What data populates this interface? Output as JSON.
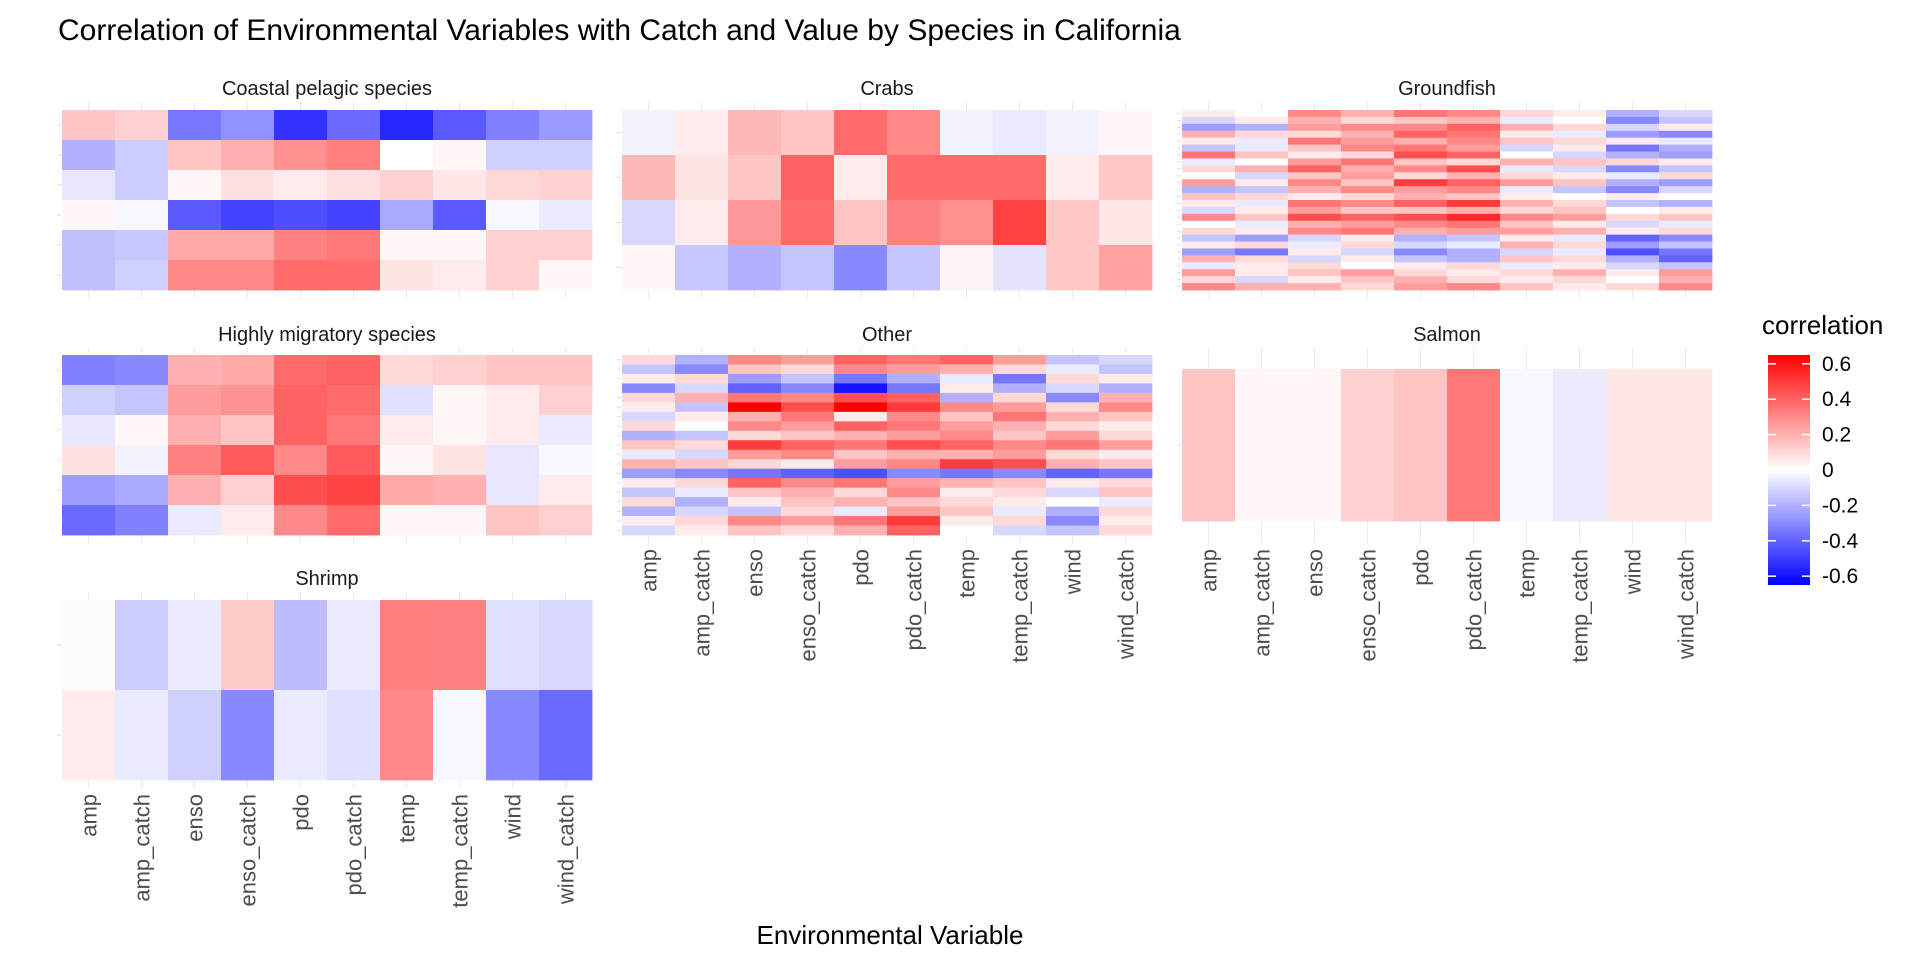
{
  "chart_data": {
    "type": "heatmap",
    "title": "Correlation of Environmental Variables with Catch and Value by Species in California",
    "xlabel": "Environmental Variable",
    "ylabel": "",
    "x": [
      "amp",
      "amp_catch",
      "enso",
      "enso_catch",
      "pdo",
      "pdo_catch",
      "temp",
      "temp_catch",
      "wind",
      "wind_catch"
    ],
    "legend": {
      "title": "correlation",
      "ticks": [
        "0.6",
        "0.4",
        "0.2",
        "0",
        "-0.2",
        "-0.4",
        "-0.6"
      ],
      "range": [
        -0.65,
        0.65
      ],
      "position": "right"
    },
    "colors": {
      "low": "#0000ff",
      "mid": "#ffffff",
      "high": "#ff0000"
    },
    "grid": true,
    "panels": [
      {
        "name": "Coastal pelagic species",
        "values": [
          [
            0.15,
            0.12,
            -0.35,
            -0.28,
            -0.52,
            -0.38,
            -0.55,
            -0.42,
            -0.32,
            -0.26
          ],
          [
            -0.2,
            -0.13,
            0.15,
            0.2,
            0.28,
            0.33,
            0.0,
            0.02,
            -0.12,
            -0.12
          ],
          [
            -0.06,
            -0.13,
            0.02,
            0.08,
            0.05,
            0.08,
            0.12,
            0.06,
            0.1,
            0.12
          ],
          [
            0.02,
            -0.02,
            -0.42,
            -0.48,
            -0.45,
            -0.48,
            -0.22,
            -0.42,
            -0.02,
            -0.05
          ],
          [
            -0.16,
            -0.14,
            0.22,
            0.22,
            0.32,
            0.35,
            0.02,
            0.02,
            0.12,
            0.12
          ],
          [
            -0.16,
            -0.12,
            0.3,
            0.3,
            0.38,
            0.38,
            0.07,
            0.05,
            0.12,
            0.02
          ]
        ]
      },
      {
        "name": "Crabs",
        "values": [
          [
            -0.03,
            0.05,
            0.18,
            0.15,
            0.38,
            0.3,
            -0.03,
            -0.05,
            -0.03,
            0.02
          ],
          [
            0.18,
            0.07,
            0.15,
            0.4,
            0.05,
            0.38,
            0.38,
            0.38,
            0.05,
            0.14
          ],
          [
            -0.1,
            0.05,
            0.26,
            0.38,
            0.15,
            0.32,
            0.28,
            0.48,
            0.14,
            0.06
          ],
          [
            0.02,
            -0.14,
            -0.2,
            -0.15,
            -0.3,
            -0.15,
            0.03,
            -0.07,
            0.14,
            0.24
          ]
        ]
      },
      {
        "name": "Groundfish",
        "values": [
          [
            0.05,
            0.0,
            0.3,
            0.2,
            0.35,
            0.3,
            0.1,
            0.05,
            -0.2,
            -0.1
          ],
          [
            -0.1,
            0.05,
            0.2,
            0.1,
            0.15,
            0.2,
            -0.05,
            0.0,
            -0.3,
            -0.15
          ],
          [
            -0.25,
            -0.2,
            0.25,
            0.3,
            0.3,
            0.4,
            0.2,
            0.1,
            -0.1,
            0.05
          ],
          [
            0.2,
            0.1,
            0.1,
            0.2,
            0.4,
            0.35,
            0.05,
            -0.05,
            -0.25,
            -0.3
          ],
          [
            0.05,
            -0.05,
            0.35,
            0.25,
            0.2,
            0.3,
            0.15,
            0.1,
            0.05,
            -0.05
          ],
          [
            -0.15,
            -0.05,
            0.15,
            0.3,
            0.35,
            0.25,
            -0.1,
            0.05,
            -0.35,
            -0.2
          ],
          [
            0.35,
            0.15,
            0.05,
            0.1,
            0.45,
            0.4,
            0.0,
            -0.1,
            -0.2,
            -0.25
          ],
          [
            -0.05,
            0.0,
            0.25,
            0.35,
            0.15,
            0.1,
            0.2,
            0.15,
            0.1,
            0.05
          ],
          [
            0.1,
            0.2,
            0.4,
            0.2,
            0.3,
            0.45,
            -0.05,
            -0.1,
            -0.3,
            -0.15
          ],
          [
            0.0,
            -0.1,
            0.15,
            0.25,
            0.1,
            0.2,
            0.1,
            0.05,
            -0.05,
            0.1
          ],
          [
            0.25,
            0.05,
            0.3,
            0.15,
            0.5,
            0.4,
            0.25,
            0.15,
            -0.2,
            -0.25
          ],
          [
            -0.2,
            -0.15,
            0.2,
            0.3,
            0.25,
            0.3,
            -0.05,
            -0.15,
            -0.3,
            -0.1
          ],
          [
            0.15,
            0.1,
            0.05,
            0.1,
            0.2,
            0.15,
            0.05,
            0.0,
            0.05,
            0.0
          ],
          [
            0.05,
            -0.05,
            0.35,
            0.3,
            0.4,
            0.5,
            0.2,
            0.1,
            -0.15,
            -0.2
          ],
          [
            -0.1,
            0.05,
            0.25,
            0.15,
            0.15,
            0.2,
            0.1,
            0.15,
            0.0,
            0.05
          ],
          [
            0.3,
            0.15,
            0.45,
            0.4,
            0.45,
            0.55,
            0.3,
            0.25,
            0.1,
            0.15
          ],
          [
            0.0,
            -0.05,
            0.2,
            0.25,
            0.3,
            0.35,
            0.15,
            0.05,
            -0.1,
            -0.05
          ],
          [
            0.1,
            0.05,
            0.3,
            0.35,
            0.2,
            0.25,
            0.25,
            0.2,
            0.05,
            0.1
          ],
          [
            -0.15,
            -0.25,
            -0.1,
            0.05,
            -0.2,
            -0.15,
            0.05,
            -0.05,
            -0.4,
            -0.3
          ],
          [
            0.05,
            0.1,
            -0.05,
            0.1,
            -0.1,
            -0.05,
            0.2,
            0.1,
            -0.25,
            -0.15
          ],
          [
            -0.25,
            -0.35,
            0.05,
            -0.1,
            -0.3,
            -0.2,
            -0.1,
            -0.05,
            -0.45,
            -0.35
          ],
          [
            0.2,
            0.1,
            -0.1,
            0.05,
            -0.15,
            -0.2,
            0.15,
            0.1,
            -0.2,
            -0.4
          ],
          [
            -0.05,
            0.05,
            0.1,
            0.0,
            0.05,
            0.1,
            -0.05,
            0.05,
            -0.1,
            -0.15
          ],
          [
            0.25,
            0.05,
            0.15,
            0.25,
            0.1,
            0.05,
            0.1,
            0.2,
            0.05,
            0.25
          ],
          [
            0.1,
            -0.1,
            0.05,
            0.15,
            0.2,
            0.1,
            0.05,
            0.1,
            0.0,
            0.2
          ],
          [
            0.3,
            0.2,
            0.2,
            0.1,
            0.25,
            0.3,
            0.15,
            0.05,
            0.1,
            0.3
          ]
        ]
      },
      {
        "name": "Highly migratory species",
        "values": [
          [
            -0.32,
            -0.3,
            0.2,
            0.22,
            0.38,
            0.4,
            0.1,
            0.12,
            0.15,
            0.15
          ],
          [
            -0.12,
            -0.15,
            0.25,
            0.28,
            0.4,
            0.38,
            -0.08,
            0.02,
            0.05,
            0.12
          ],
          [
            -0.06,
            0.02,
            0.2,
            0.15,
            0.4,
            0.35,
            0.05,
            0.02,
            0.05,
            -0.05
          ],
          [
            0.08,
            -0.03,
            0.32,
            0.42,
            0.3,
            0.42,
            0.02,
            0.07,
            -0.06,
            -0.02
          ],
          [
            -0.25,
            -0.22,
            0.2,
            0.12,
            0.45,
            0.48,
            0.22,
            0.2,
            -0.06,
            0.05
          ],
          [
            -0.38,
            -0.32,
            -0.05,
            0.05,
            0.3,
            0.38,
            0.02,
            0.02,
            0.15,
            0.12
          ]
        ]
      },
      {
        "name": "Other",
        "values": [
          [
            0.1,
            -0.2,
            0.3,
            0.25,
            0.4,
            0.35,
            0.4,
            0.25,
            -0.15,
            -0.1
          ],
          [
            -0.15,
            -0.3,
            0.15,
            0.1,
            0.3,
            0.25,
            0.2,
            0.1,
            -0.05,
            -0.15
          ],
          [
            0.05,
            0.1,
            -0.25,
            -0.15,
            -0.35,
            -0.2,
            -0.05,
            -0.35,
            0.1,
            0.05
          ],
          [
            -0.3,
            -0.1,
            -0.4,
            -0.3,
            -0.6,
            -0.35,
            0.05,
            -0.2,
            -0.1,
            -0.2
          ],
          [
            0.1,
            0.2,
            0.35,
            0.3,
            0.45,
            0.4,
            -0.2,
            0.1,
            -0.3,
            0.2
          ],
          [
            0.05,
            -0.15,
            0.65,
            0.45,
            0.65,
            0.5,
            0.3,
            0.25,
            0.1,
            0.3
          ],
          [
            -0.1,
            0.05,
            0.2,
            0.35,
            0.05,
            0.3,
            0.15,
            0.35,
            0.2,
            0.15
          ],
          [
            0.1,
            0.0,
            0.3,
            0.25,
            0.4,
            0.35,
            0.25,
            0.2,
            0.1,
            0.05
          ],
          [
            -0.2,
            -0.15,
            0.1,
            0.15,
            0.2,
            0.25,
            0.3,
            0.15,
            0.25,
            0.1
          ],
          [
            0.15,
            0.1,
            0.5,
            0.4,
            0.35,
            0.45,
            0.4,
            0.3,
            0.35,
            0.25
          ],
          [
            -0.05,
            -0.1,
            0.25,
            0.3,
            0.15,
            0.2,
            0.2,
            0.25,
            0.1,
            0.05
          ],
          [
            0.2,
            0.15,
            0.1,
            0.05,
            0.25,
            0.3,
            0.5,
            0.45,
            0.2,
            0.15
          ],
          [
            -0.25,
            -0.3,
            -0.35,
            -0.4,
            -0.45,
            -0.3,
            -0.35,
            -0.3,
            -0.4,
            -0.35
          ],
          [
            0.05,
            0.1,
            0.4,
            0.3,
            0.35,
            0.25,
            0.2,
            0.15,
            0.05,
            0.1
          ],
          [
            -0.15,
            -0.05,
            0.15,
            0.2,
            0.1,
            0.3,
            0.05,
            0.1,
            -0.1,
            0.15
          ],
          [
            0.1,
            -0.2,
            0.05,
            0.15,
            0.2,
            0.15,
            0.1,
            0.05,
            0.0,
            -0.05
          ],
          [
            -0.2,
            -0.1,
            -0.15,
            0.1,
            -0.05,
            0.25,
            0.15,
            -0.05,
            -0.2,
            0.1
          ],
          [
            0.05,
            0.1,
            0.3,
            0.25,
            0.35,
            0.5,
            0.05,
            0.1,
            -0.3,
            0.05
          ],
          [
            -0.1,
            0.05,
            0.15,
            0.1,
            0.2,
            0.4,
            0.0,
            -0.1,
            -0.15,
            0.1
          ]
        ]
      },
      {
        "name": "Salmon",
        "values": [
          [
            0.15,
            0.02,
            0.02,
            0.12,
            0.15,
            0.35,
            -0.02,
            -0.05,
            0.06,
            0.06
          ]
        ]
      },
      {
        "name": "Shrimp",
        "values": [
          [
            0.01,
            -0.13,
            -0.05,
            0.13,
            -0.17,
            -0.05,
            0.33,
            0.32,
            -0.08,
            -0.1
          ],
          [
            0.05,
            -0.05,
            -0.12,
            -0.3,
            -0.05,
            -0.08,
            0.3,
            -0.02,
            -0.3,
            -0.38
          ]
        ]
      }
    ]
  }
}
